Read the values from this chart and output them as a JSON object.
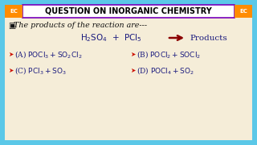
{
  "bg_color": "#5BC8E8",
  "panel_color": "#F5EDD8",
  "header_bg": "#FFFFFF",
  "header_border": "#7700BB",
  "header_text": "QUESTION ON INORGANIC CHEMISTRY",
  "ec_bg": "#FF8C00",
  "ec_text": "EC",
  "text_color": "#1a1a7e",
  "arrow_color": "#8B0000",
  "option_marker_color": "#CC1100",
  "question_color": "#111111",
  "header_fontsize": 7.0,
  "ec_fontsize": 5.0,
  "question_fontsize": 6.8,
  "reaction_fontsize": 7.5,
  "option_fontsize": 6.5
}
